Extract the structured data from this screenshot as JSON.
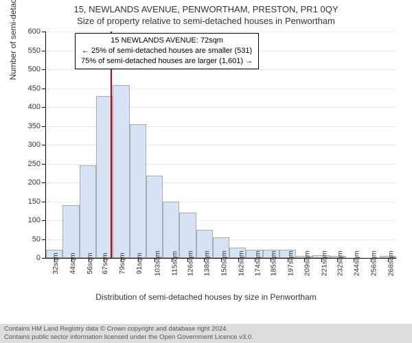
{
  "titles": {
    "main": "15, NEWLANDS AVENUE, PENWORTHAM, PRESTON, PR1 0QY",
    "sub": "Size of property relative to semi-detached houses in Penwortham"
  },
  "annotation": {
    "line1": "15 NEWLANDS AVENUE: 72sqm",
    "line2": "← 25% of semi-detached houses are smaller (531)",
    "line3": "75% of semi-detached houses are larger (1,601) →"
  },
  "axes": {
    "ylabel": "Number of semi-detached properties",
    "xlabel": "Distribution of semi-detached houses by size in Penwortham",
    "ylim": [
      0,
      600
    ],
    "ytick_step": 50,
    "yticks": [
      0,
      50,
      100,
      150,
      200,
      250,
      300,
      350,
      400,
      450,
      500,
      550,
      600
    ],
    "xlim_sqm": [
      26,
      274
    ],
    "xtick_labels": [
      "32sqm",
      "44sqm",
      "56sqm",
      "67sqm",
      "79sqm",
      "91sqm",
      "103sqm",
      "115sqm",
      "126sqm",
      "138sqm",
      "150sqm",
      "162sqm",
      "174sqm",
      "185sqm",
      "197sqm",
      "209sqm",
      "221sqm",
      "232sqm",
      "244sqm",
      "256sqm",
      "268sqm"
    ],
    "xtick_sqm": [
      32,
      44,
      56,
      67,
      79,
      91,
      103,
      115,
      126,
      138,
      150,
      162,
      174,
      185,
      197,
      209,
      221,
      232,
      244,
      256,
      268
    ]
  },
  "histogram": {
    "type": "histogram",
    "bin_width_sqm": 11.8,
    "bin_starts_sqm": [
      26.1,
      37.9,
      49.7,
      61.5,
      73.3,
      85.1,
      96.9,
      108.7,
      120.5,
      132.3,
      144.1,
      155.9,
      167.7,
      179.5,
      191.3,
      203.1,
      214.9,
      226.7,
      238.5,
      250.3,
      262.1
    ],
    "counts": [
      22,
      140,
      245,
      430,
      458,
      355,
      218,
      150,
      120,
      75,
      55,
      28,
      22,
      22,
      22,
      5,
      8,
      5,
      0,
      0,
      5
    ],
    "bar_fill": "#d6e3f5",
    "bar_border": "#aaaaaa",
    "grid_color": "#e8e8e8",
    "background": "#ffffff"
  },
  "marker": {
    "sqm": 72,
    "color": "#cc0000"
  },
  "footer": {
    "line1": "Contains HM Land Registry data © Crown copyright and database right 2024.",
    "line2": "Contains public sector information licensed under the Open Government Licence v3.0."
  }
}
